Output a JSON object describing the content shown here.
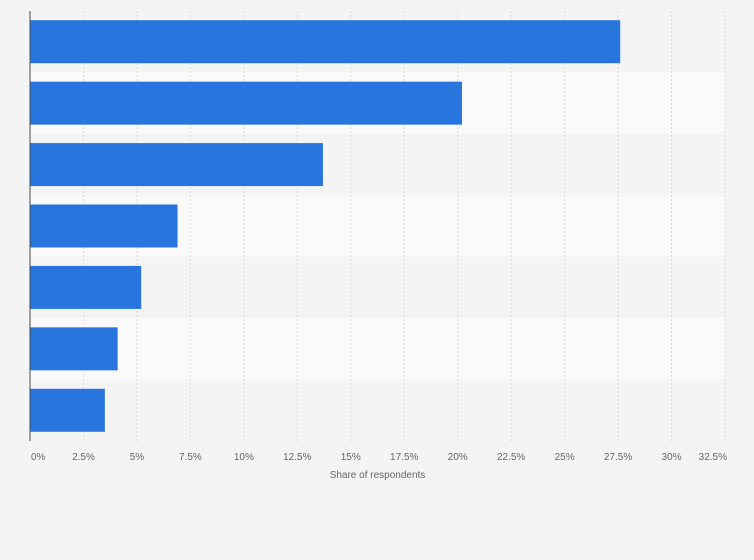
{
  "chart_data": {
    "type": "bar",
    "orientation": "horizontal",
    "categories": [
      "",
      "",
      "",
      "",
      "",
      "",
      ""
    ],
    "values": [
      27.6,
      20.2,
      13.7,
      6.9,
      5.2,
      4.1,
      3.5
    ],
    "xlabel": "Share of respondents",
    "ylabel": "",
    "xlim": [
      0,
      32.5
    ],
    "x_ticks": [
      0,
      2.5,
      5,
      7.5,
      10,
      12.5,
      15,
      17.5,
      20,
      22.5,
      25,
      27.5,
      30,
      32.5
    ],
    "x_tick_labels": [
      "0%",
      "2.5%",
      "5%",
      "7.5%",
      "10%",
      "12.5%",
      "15%",
      "17.5%",
      "20%",
      "22.5%",
      "25%",
      "27.5%",
      "30%",
      "32.5%"
    ],
    "grid": true,
    "legend": "none",
    "colors": {
      "bar": "#2876dd",
      "grid": "#d9d9d9",
      "band_light": "#fafafa",
      "band_dark": "#f4f4f4",
      "axis": "#4a4a4a",
      "tick_text": "#666666"
    }
  }
}
